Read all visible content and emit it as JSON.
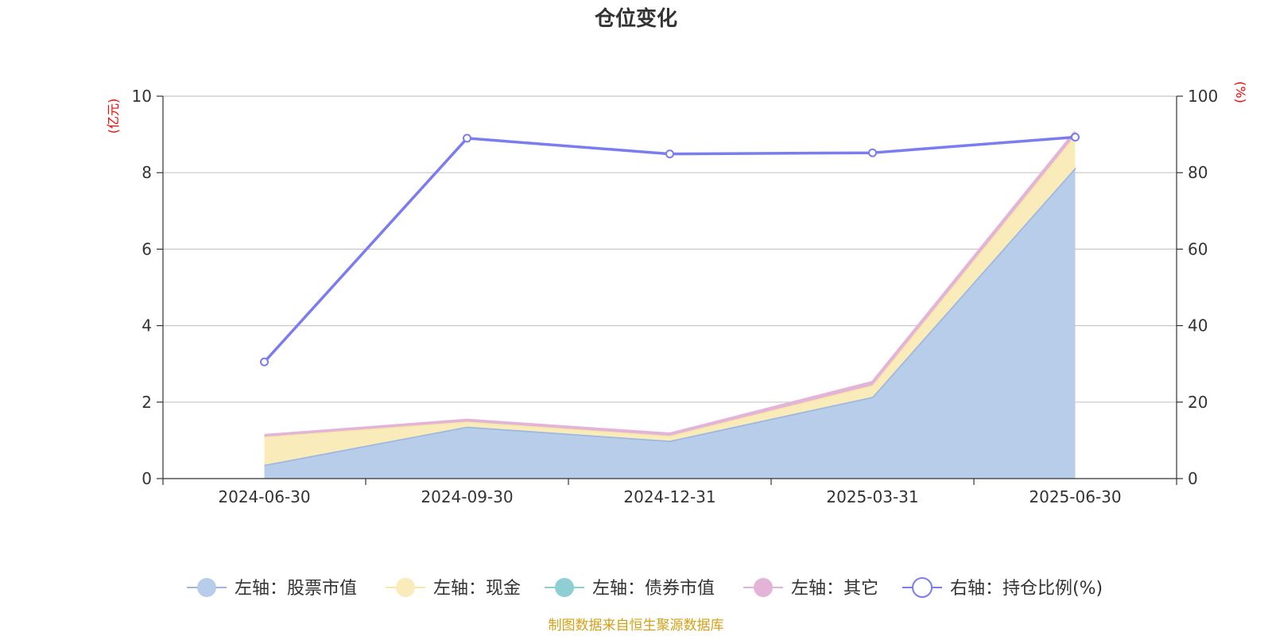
{
  "chart_data": {
    "type": "area",
    "title": "仓位变化",
    "source_note": "制图数据来自恒生聚源数据库",
    "categories": [
      "2024-06-30",
      "2024-09-30",
      "2024-12-31",
      "2025-03-31",
      "2025-06-30"
    ],
    "left_axis": {
      "unit": "(亿元)",
      "ylim": [
        0,
        10
      ],
      "ticks": [
        "0",
        "2",
        "4",
        "6",
        "8",
        "10"
      ]
    },
    "right_axis": {
      "unit": "(%)",
      "ylim": [
        0,
        100
      ],
      "ticks": [
        "0",
        "20",
        "40",
        "60",
        "80",
        "100"
      ]
    },
    "grid": true,
    "legend_position": "bottom",
    "series": [
      {
        "name": "左轴：股票市值",
        "axis": "left",
        "kind": "stacked-area",
        "color": "#9cb8e0",
        "fill": "#b8cdea",
        "values": [
          0.36,
          1.36,
          0.99,
          2.14,
          8.13
        ]
      },
      {
        "name": "左轴：现金",
        "axis": "left",
        "kind": "stacked-area",
        "color": "#f7e8a8",
        "fill": "#f9ecba",
        "values": [
          0.74,
          0.13,
          0.13,
          0.3,
          0.85
        ]
      },
      {
        "name": "左轴：债券市值",
        "axis": "left",
        "kind": "stacked-area",
        "color": "#8ecfd3",
        "fill": "#8ecfd3",
        "values": [
          0,
          0,
          0,
          0,
          0
        ]
      },
      {
        "name": "左轴：其它",
        "axis": "left",
        "kind": "stacked-area",
        "color": "#e4b3d8",
        "fill": "#e4b3d8",
        "values": [
          0.03,
          0.04,
          0.05,
          0.08,
          0.09
        ]
      },
      {
        "name": "右轴：持仓比例(%)",
        "axis": "right",
        "kind": "line",
        "color": "#7a7cf0",
        "values": [
          30.5,
          89.0,
          84.9,
          85.2,
          89.3
        ]
      }
    ]
  }
}
